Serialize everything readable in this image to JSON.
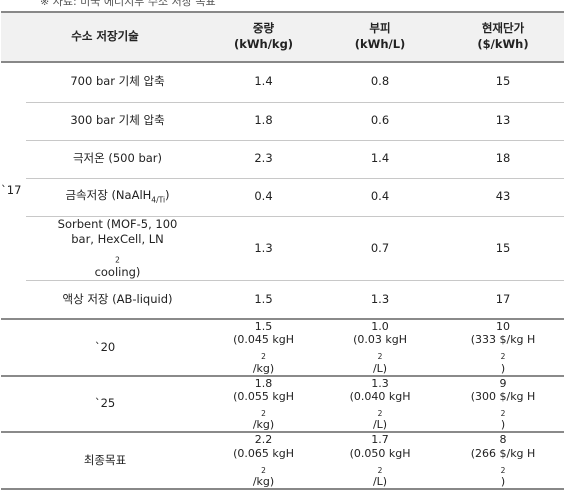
{
  "caption_fragment": "※ 자료: 미국 에너지부 수소 저장 목표",
  "headers": {
    "tech": "수소 저장기술",
    "weight": [
      "중량",
      "(kWh/kg)"
    ],
    "volume": [
      "부피",
      "(kWh/L)"
    ],
    "cost": [
      "현재단가",
      "($/kWh)"
    ]
  },
  "year_2017": "`17",
  "rows_2017": [
    {
      "tech": "700 bar 기체 압축",
      "weight": "1.4",
      "volume": "0.8",
      "cost": "15"
    },
    {
      "tech": "300 bar 기체 압축",
      "weight": "1.8",
      "volume": "0.6",
      "cost": "13"
    },
    {
      "tech": "극저온 (500 bar)",
      "weight": "2.3",
      "volume": "1.4",
      "cost": "18"
    },
    {
      "tech_pre": "금속저장 (NaAlH",
      "tech_sub": "4/Ti",
      "tech_post": ")",
      "weight": "0.4",
      "volume": "0.4",
      "cost": "43"
    },
    {
      "tech_line1": "Sorbent (MOF-5, 100",
      "tech_line2_pre": "bar, HexCell, LN",
      "tech_line2_sub": "2",
      "tech_line2_post": " cooling)",
      "weight": "1.3",
      "volume": "0.7",
      "cost": "15"
    },
    {
      "tech": "액상 저장 (AB-liquid)",
      "weight": "1.5",
      "volume": "1.3",
      "cost": "17"
    }
  ],
  "targets": [
    {
      "label": "`20",
      "weight_main": "1.5",
      "weight_sub_pre": "(0.045 kgH",
      "weight_sub_post": "/kg)",
      "volume_main": "1.0",
      "volume_sub_pre": "(0.03 kgH",
      "volume_sub_post": "/L)",
      "cost_main": "10",
      "cost_sub_pre": "(333 $/kg H",
      "cost_sub_post": ")"
    },
    {
      "label": "`25",
      "weight_main": "1.8",
      "weight_sub_pre": "(0.055 kgH",
      "weight_sub_post": "/kg)",
      "volume_main": "1.3",
      "volume_sub_pre": "(0.040 kgH",
      "volume_sub_post": "/L)",
      "cost_main": "9",
      "cost_sub_pre": "(300 $/kg H",
      "cost_sub_post": ")"
    },
    {
      "label": "최종목표",
      "weight_main": "2.2",
      "weight_sub_pre": "(0.065 kgH",
      "weight_sub_post": "/kg)",
      "volume_main": "1.7",
      "volume_sub_pre": "(0.050 kgH",
      "volume_sub_post": "/L)",
      "cost_main": "8",
      "cost_sub_pre": "(266 $/kg H",
      "cost_sub_post": ")"
    }
  ],
  "h2_sub": "2"
}
